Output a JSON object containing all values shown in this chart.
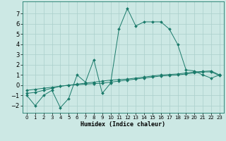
{
  "xlabel": "Humidex (Indice chaleur)",
  "background_color": "#cce8e4",
  "grid_color": "#aacfcb",
  "line_color": "#1a7a6a",
  "xlim": [
    -0.5,
    23.5
  ],
  "ylim": [
    -2.7,
    8.2
  ],
  "xticks": [
    0,
    1,
    2,
    3,
    4,
    5,
    6,
    7,
    8,
    9,
    10,
    11,
    12,
    13,
    14,
    15,
    16,
    17,
    18,
    19,
    20,
    21,
    22,
    23
  ],
  "yticks": [
    -2,
    -1,
    0,
    1,
    2,
    3,
    4,
    5,
    6,
    7
  ],
  "series": [
    {
      "x": [
        0,
        1,
        2,
        3,
        4,
        5,
        6,
        7,
        8,
        9,
        10,
        11,
        12,
        13,
        14,
        15,
        16,
        17,
        18,
        19,
        20,
        21,
        22,
        23
      ],
      "y": [
        -1.0,
        -2.0,
        -1.0,
        -0.5,
        -2.2,
        -1.3,
        1.0,
        0.3,
        2.5,
        -0.8,
        0.2,
        5.5,
        7.5,
        5.8,
        6.2,
        6.2,
        6.2,
        5.5,
        4.0,
        1.5,
        1.4,
        1.0,
        0.7,
        1.0
      ]
    },
    {
      "x": [
        0,
        1,
        2,
        3,
        4,
        5,
        6,
        7,
        8,
        9,
        10,
        11,
        12,
        13,
        14,
        15,
        16,
        17,
        18,
        19,
        20,
        21,
        22,
        23
      ],
      "y": [
        -0.8,
        -0.7,
        -0.5,
        -0.3,
        -0.1,
        0.0,
        0.1,
        0.2,
        0.3,
        0.4,
        0.5,
        0.55,
        0.6,
        0.7,
        0.8,
        0.9,
        1.0,
        1.05,
        1.1,
        1.2,
        1.3,
        1.35,
        1.4,
        1.0
      ]
    },
    {
      "x": [
        0,
        1,
        2,
        3,
        4,
        5,
        6,
        7,
        8,
        9,
        10,
        11,
        12,
        13,
        14,
        15,
        16,
        17,
        18,
        19,
        20,
        21,
        22,
        23
      ],
      "y": [
        -0.5,
        -0.4,
        -0.3,
        -0.2,
        -0.1,
        0.0,
        0.05,
        0.1,
        0.15,
        0.2,
        0.3,
        0.4,
        0.5,
        0.6,
        0.7,
        0.8,
        0.9,
        0.95,
        1.0,
        1.1,
        1.2,
        1.3,
        1.3,
        0.95
      ]
    }
  ]
}
